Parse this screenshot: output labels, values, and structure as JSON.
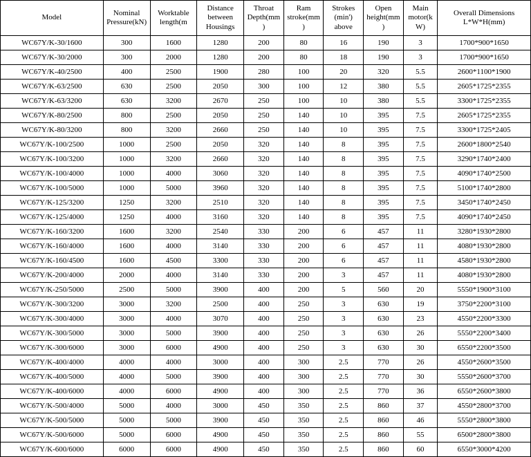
{
  "columns": [
    {
      "key": "model",
      "label": "Model",
      "cls": "col-model"
    },
    {
      "key": "pressure",
      "label": "Nominal Pressure(kN)",
      "cls": "col-pressure"
    },
    {
      "key": "worktable",
      "label": "Worktable length(m",
      "cls": "col-worktable"
    },
    {
      "key": "distance",
      "label": "Distance between Housings",
      "cls": "col-distance"
    },
    {
      "key": "throat",
      "label": "Throat Depth(mm)",
      "cls": "col-throat"
    },
    {
      "key": "ram",
      "label": "Ram stroke(mm)",
      "cls": "col-ram"
    },
    {
      "key": "strokes",
      "label": "Strokes (min') above",
      "cls": "col-strokes"
    },
    {
      "key": "open",
      "label": "Open height(mm)",
      "cls": "col-open"
    },
    {
      "key": "motor",
      "label": "Main motor(kW)",
      "cls": "col-motor"
    },
    {
      "key": "dims",
      "label": "Overall Dimensions L*W*H(mm)",
      "cls": "col-dims"
    }
  ],
  "rows": [
    [
      "WC67Y/K-30/1600",
      "300",
      "1600",
      "1280",
      "200",
      "80",
      "16",
      "190",
      "3",
      "1700*900*1650"
    ],
    [
      "WC67Y/K-30/2000",
      "300",
      "2000",
      "1280",
      "200",
      "80",
      "18",
      "190",
      "3",
      "1700*900*1650"
    ],
    [
      "WC67Y/K-40/2500",
      "400",
      "2500",
      "1900",
      "280",
      "100",
      "20",
      "320",
      "5.5",
      "2600*1100*1900"
    ],
    [
      "WC67Y/K-63/2500",
      "630",
      "2500",
      "2050",
      "300",
      "100",
      "12",
      "380",
      "5.5",
      "2605*1725*2355"
    ],
    [
      "WC67Y/K-63/3200",
      "630",
      "3200",
      "2670",
      "250",
      "100",
      "10",
      "380",
      "5.5",
      "3300*1725*2355"
    ],
    [
      "WC67Y/K-80/2500",
      "800",
      "2500",
      "2050",
      "250",
      "140",
      "10",
      "395",
      "7.5",
      "2605*1725*2355"
    ],
    [
      "WC67Y/K-80/3200",
      "800",
      "3200",
      "2660",
      "250",
      "140",
      "10",
      "395",
      "7.5",
      "3300*1725*2405"
    ],
    [
      "WC67Y/K-100/2500",
      "1000",
      "2500",
      "2050",
      "320",
      "140",
      "8",
      "395",
      "7.5",
      "2600*1800*2540"
    ],
    [
      "WC67Y/K-100/3200",
      "1000",
      "3200",
      "2660",
      "320",
      "140",
      "8",
      "395",
      "7.5",
      "3290*1740*2400"
    ],
    [
      "WC67Y/K-100/4000",
      "1000",
      "4000",
      "3060",
      "320",
      "140",
      "8",
      "395",
      "7.5",
      "4090*1740*2500"
    ],
    [
      "WC67Y/K-100/5000",
      "1000",
      "5000",
      "3960",
      "320",
      "140",
      "8",
      "395",
      "7.5",
      "5100*1740*2800"
    ],
    [
      "WC67Y/K-125/3200",
      "1250",
      "3200",
      "2510",
      "320",
      "140",
      "8",
      "395",
      "7.5",
      "3450*1740*2450"
    ],
    [
      "WC67Y/K-125/4000",
      "1250",
      "4000",
      "3160",
      "320",
      "140",
      "8",
      "395",
      "7.5",
      "4090*1740*2450"
    ],
    [
      "WC67Y/K-160/3200",
      "1600",
      "3200",
      "2540",
      "330",
      "200",
      "6",
      "457",
      "11",
      "3280*1930*2800"
    ],
    [
      "WC67Y/K-160/4000",
      "1600",
      "4000",
      "3140",
      "330",
      "200",
      "6",
      "457",
      "11",
      "4080*1930*2800"
    ],
    [
      "WC67Y/K-160/4500",
      "1600",
      "4500",
      "3300",
      "330",
      "200",
      "6",
      "457",
      "11",
      "4580*1930*2800"
    ],
    [
      "WC67Y/K-200/4000",
      "2000",
      "4000",
      "3140",
      "330",
      "200",
      "3",
      "457",
      "11",
      "4080*1930*2800"
    ],
    [
      "WC67Y/K-250/5000",
      "2500",
      "5000",
      "3900",
      "400",
      "200",
      "5",
      "560",
      "20",
      "5550*1900*3100"
    ],
    [
      "WC67Y/K-300/3200",
      "3000",
      "3200",
      "2500",
      "400",
      "250",
      "3",
      "630",
      "19",
      "3750*2200*3100"
    ],
    [
      "WC67Y/K-300/4000",
      "3000",
      "4000",
      "3070",
      "400",
      "250",
      "3",
      "630",
      "23",
      "4550*2200*3300"
    ],
    [
      "WC67Y/K-300/5000",
      "3000",
      "5000",
      "3900",
      "400",
      "250",
      "3",
      "630",
      "26",
      "5550*2200*3400"
    ],
    [
      "WC67Y/K-300/6000",
      "3000",
      "6000",
      "4900",
      "400",
      "250",
      "3",
      "630",
      "30",
      "6550*2200*3500"
    ],
    [
      "WC67Y/K-400/4000",
      "4000",
      "4000",
      "3000",
      "400",
      "300",
      "2.5",
      "770",
      "26",
      "4550*2600*3500"
    ],
    [
      "WC67Y/K-400/5000",
      "4000",
      "5000",
      "3900",
      "400",
      "300",
      "2.5",
      "770",
      "30",
      "5550*2600*3700"
    ],
    [
      "WC67Y/K-400/6000",
      "4000",
      "6000",
      "4900",
      "400",
      "300",
      "2.5",
      "770",
      "36",
      "6550*2600*3800"
    ],
    [
      "WC67Y/K-500/4000",
      "5000",
      "4000",
      "3000",
      "450",
      "350",
      "2.5",
      "860",
      "37",
      "4550*2800*3700"
    ],
    [
      "WC67Y/K-500/5000",
      "5000",
      "5000",
      "3900",
      "450",
      "350",
      "2.5",
      "860",
      "46",
      "5550*2800*3800"
    ],
    [
      "WC67Y/K-500/6000",
      "5000",
      "6000",
      "4900",
      "450",
      "350",
      "2.5",
      "860",
      "55",
      "6500*2800*3800"
    ],
    [
      "WC67Y/K-600/6000",
      "6000",
      "6000",
      "4900",
      "450",
      "350",
      "2.5",
      "860",
      "60",
      "6550*3000*4200"
    ]
  ]
}
